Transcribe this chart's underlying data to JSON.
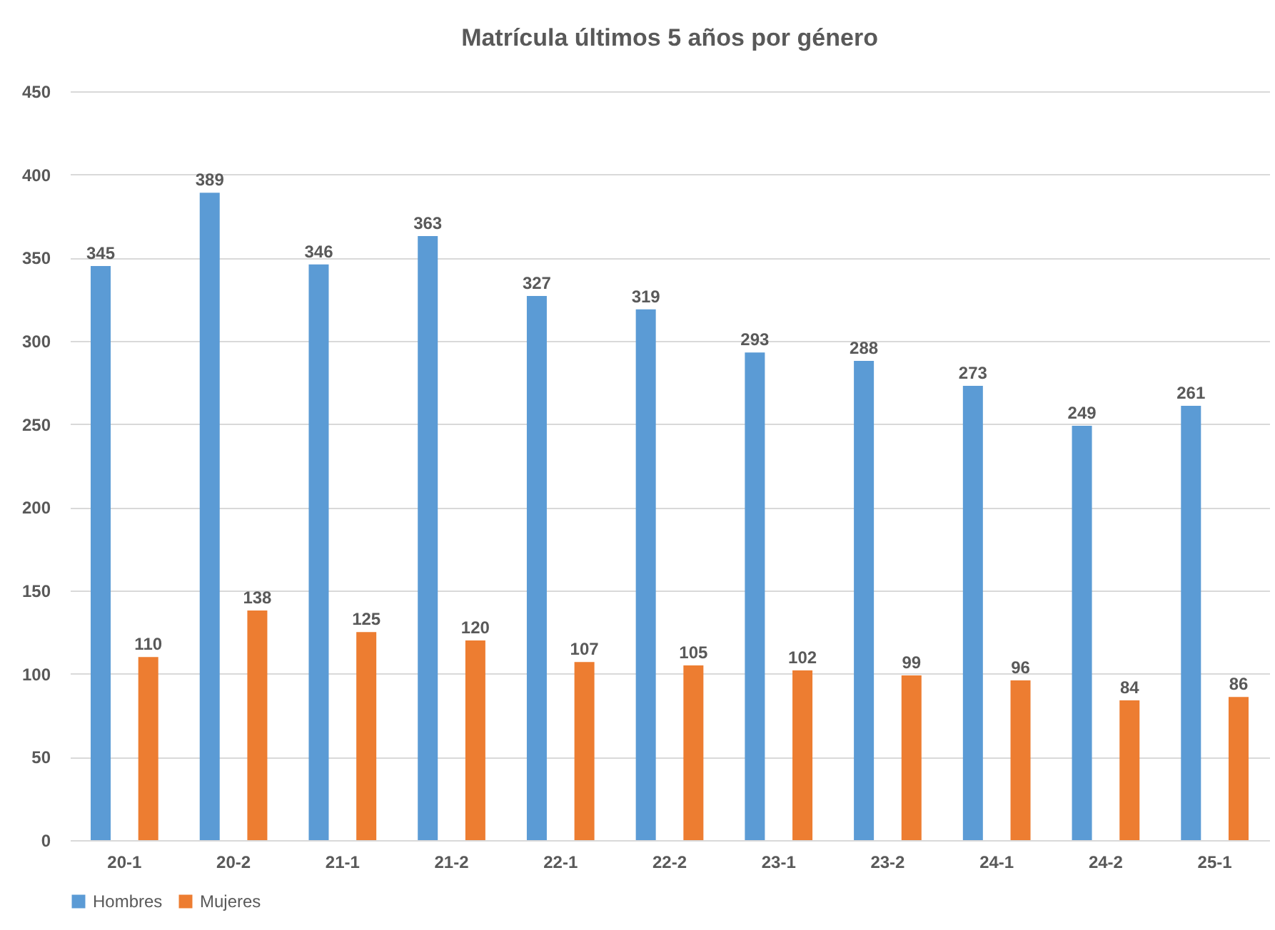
{
  "chart_data": {
    "type": "bar",
    "title": "Matrícula últimos 5 años por género",
    "categories": [
      "20-1",
      "20-2",
      "21-1",
      "21-2",
      "22-1",
      "22-2",
      "23-1",
      "23-2",
      "24-1",
      "24-2",
      "25-1"
    ],
    "series": [
      {
        "name": "Hombres",
        "color": "#5b9bd5",
        "values": [
          345,
          389,
          346,
          363,
          327,
          319,
          293,
          288,
          273,
          249,
          261
        ]
      },
      {
        "name": "Mujeres",
        "color": "#ed7d31",
        "values": [
          110,
          138,
          125,
          120,
          107,
          105,
          102,
          99,
          96,
          84,
          86
        ]
      }
    ],
    "ylim": [
      0,
      450
    ],
    "yticks": [
      0,
      50,
      100,
      150,
      200,
      250,
      300,
      350,
      400,
      450
    ],
    "grid": "y",
    "legend": "bottom",
    "data_labels": true
  }
}
